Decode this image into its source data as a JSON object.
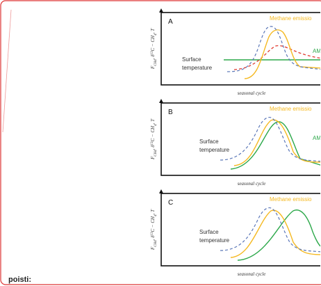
{
  "figure": {
    "y_axis_label": [
      "F",
      "CH4",
      ", δ",
      "13",
      "C − CH",
      "4",
      ", T"
    ],
    "panels": [
      {
        "letter": "A",
        "methane": "Methane emissio",
        "green": "AM",
        "surface": [
          "Surface",
          "temperature"
        ],
        "x_label": "seasonal cycle"
      },
      {
        "letter": "B",
        "methane": "Methane emissio",
        "green": "AM",
        "surface": [
          "Surface",
          "temperature"
        ],
        "x_label": "seasonal cycle"
      },
      {
        "letter": "C",
        "methane": "Methane emissio",
        "surface": [
          "Surface",
          "temperature"
        ],
        "x_label": "seasonal cycle"
      }
    ],
    "footer": "poisti:"
  }
}
